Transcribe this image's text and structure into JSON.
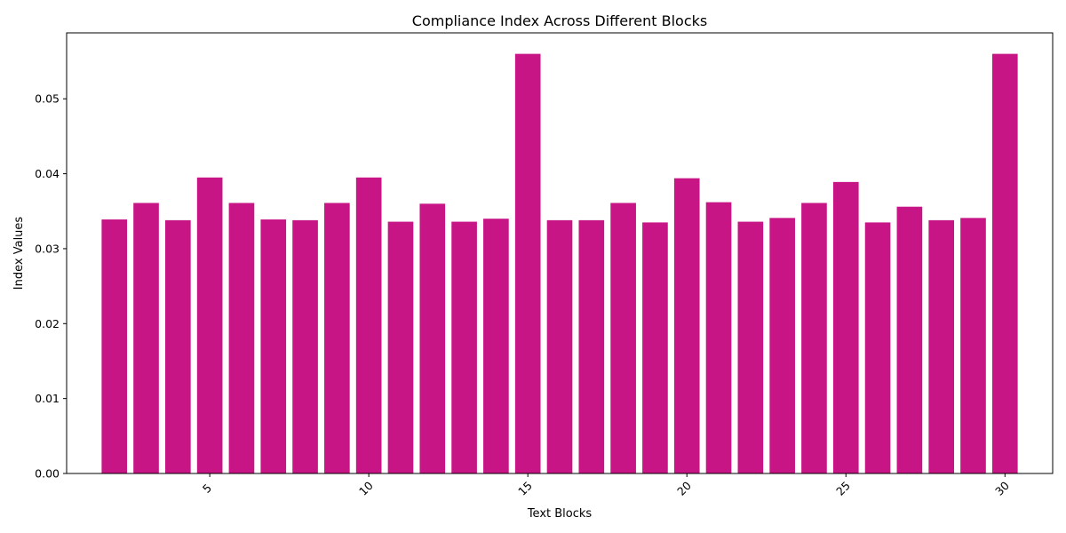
{
  "chart_data": {
    "type": "bar",
    "title": "Compliance Index Across Different Blocks",
    "xlabel": "Text Blocks",
    "ylabel": "Index Values",
    "bar_color": "#c71585",
    "x": [
      2,
      3,
      4,
      5,
      6,
      7,
      8,
      9,
      10,
      11,
      12,
      13,
      14,
      15,
      16,
      17,
      18,
      19,
      20,
      21,
      22,
      23,
      24,
      25,
      26,
      27,
      28,
      29,
      30
    ],
    "values": [
      0.0339,
      0.0361,
      0.0338,
      0.0395,
      0.0361,
      0.0339,
      0.0338,
      0.0361,
      0.0395,
      0.0336,
      0.036,
      0.0336,
      0.034,
      0.056,
      0.0338,
      0.0338,
      0.0361,
      0.0335,
      0.0394,
      0.0362,
      0.0336,
      0.0341,
      0.0361,
      0.0389,
      0.0335,
      0.0356,
      0.0338,
      0.0341,
      0.056
    ],
    "xlim": [
      0.5,
      31.5
    ],
    "ylim": [
      0,
      0.0588
    ],
    "x_ticks": [
      5,
      10,
      15,
      20,
      25,
      30
    ],
    "x_tick_labels": [
      "5",
      "10",
      "15",
      "20",
      "25",
      "30"
    ],
    "x_tick_rotation_deg": 45,
    "y_ticks": [
      0,
      0.01,
      0.02,
      0.03,
      0.04,
      0.05
    ],
    "y_tick_labels": [
      "0.00",
      "0.01",
      "0.02",
      "0.03",
      "0.04",
      "0.05"
    ],
    "grid": false,
    "legend": "none"
  }
}
